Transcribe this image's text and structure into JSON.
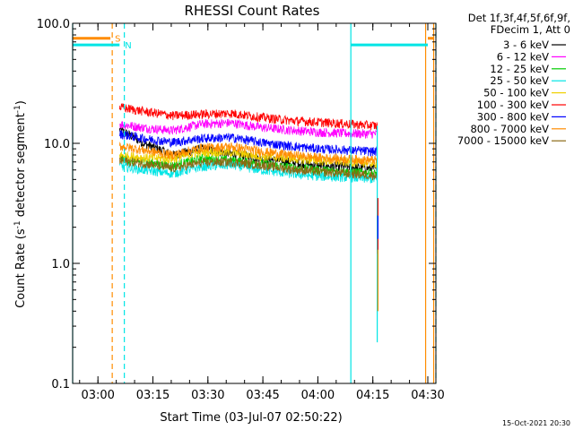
{
  "chart_data": {
    "type": "line",
    "title": "RHESSI Count Rates",
    "xlabel": "Start Time (03-Jul-07 02:50:22)",
    "ylabel_main": "Count Rate (s",
    "ylabel_sup1": "-1",
    "ylabel_mid": " detector segment",
    "ylabel_sup2": "-1",
    "ylabel_end": ")",
    "yscale": "log",
    "ylim": [
      0.1,
      100
    ],
    "xlim_minutes": [
      2.7,
      101.8
    ],
    "x_tick_labels": [
      "03:00",
      "03:15",
      "03:30",
      "03:45",
      "04:00",
      "04:15",
      "04:30"
    ],
    "x_tick_minutes": [
      9.6,
      24.6,
      39.6,
      54.6,
      69.6,
      84.6,
      99.6
    ],
    "y_tick_labels": [
      "100.0",
      "10.0",
      "1.0",
      "0.1"
    ],
    "y_tick_values": [
      100,
      10,
      1,
      0.1
    ],
    "legend_header": [
      "Det 1f,3f,4f,5f,6f,9f,",
      "FDecim 1, Att 0"
    ],
    "data_window_minutes": [
      15.5,
      85.8
    ],
    "series": [
      {
        "name": "3 - 6 keV",
        "color": "#000000",
        "x": [
          15.5,
          22,
          30,
          38,
          46,
          54,
          62,
          70,
          78,
          85.8
        ],
        "values": [
          13,
          10,
          8,
          9,
          8.2,
          7.5,
          7.0,
          6.5,
          6.4,
          6.1
        ]
      },
      {
        "name": "6 - 12 keV",
        "color": "#ff00ff",
        "x": [
          15.5,
          22,
          30,
          38,
          46,
          54,
          62,
          70,
          78,
          85.8
        ],
        "values": [
          14.5,
          13.5,
          12.8,
          14.5,
          14.8,
          13.6,
          12.9,
          12.4,
          12.1,
          12
        ]
      },
      {
        "name": "12 - 25 keV",
        "color": "#00cc00",
        "x": [
          15.5,
          22,
          30,
          38,
          46,
          54,
          62,
          70,
          78,
          85.8
        ],
        "values": [
          7.5,
          7.0,
          6.5,
          7.5,
          7.2,
          6.8,
          6.3,
          6.0,
          5.8,
          5.6
        ]
      },
      {
        "name": "25 - 50 keV",
        "color": "#00e5e5",
        "x": [
          15.5,
          22,
          30,
          38,
          46,
          54,
          62,
          70,
          78,
          85.8
        ],
        "values": [
          6.5,
          6.0,
          5.6,
          6.4,
          6.6,
          6.0,
          5.6,
          5.3,
          5.2,
          5.0
        ]
      },
      {
        "name": "50 - 100 keV",
        "color": "#f0d000",
        "x": [
          15.5,
          22,
          30,
          38,
          46,
          54,
          62,
          70,
          78,
          85.8
        ],
        "values": [
          8.0,
          7.6,
          7.4,
          8.5,
          8.4,
          7.8,
          7.5,
          7.2,
          7.0,
          6.8
        ]
      },
      {
        "name": "100 - 300 keV",
        "color": "#ff0000",
        "x": [
          15.5,
          22,
          30,
          38,
          46,
          54,
          62,
          70,
          78,
          85.8
        ],
        "values": [
          20,
          18.5,
          17,
          17.5,
          17.8,
          16.5,
          15.5,
          15.0,
          14.5,
          14.0
        ]
      },
      {
        "name": "300 - 800 keV",
        "color": "#0000ff",
        "x": [
          15.5,
          22,
          30,
          38,
          46,
          54,
          62,
          70,
          78,
          85.8
        ],
        "values": [
          12.0,
          11.0,
          10.2,
          11.0,
          11.2,
          10.2,
          9.5,
          9.0,
          8.8,
          8.5
        ]
      },
      {
        "name": "800 - 7000 keV",
        "color": "#ff8c00",
        "x": [
          15.5,
          22,
          30,
          38,
          46,
          54,
          62,
          70,
          78,
          85.8
        ],
        "values": [
          9.5,
          8.8,
          8.0,
          9.2,
          9.4,
          8.6,
          8.0,
          7.6,
          7.4,
          7.2
        ]
      },
      {
        "name": "7000 - 15000 keV",
        "color": "#8b6914",
        "x": [
          15.5,
          22,
          30,
          38,
          46,
          54,
          62,
          70,
          78,
          85.8
        ],
        "values": [
          7.2,
          6.8,
          6.2,
          6.9,
          7.0,
          6.6,
          6.1,
          5.8,
          5.6,
          5.4
        ]
      }
    ],
    "annotations": [
      {
        "label": "S",
        "color": "#ff8c00",
        "bar_x_minutes": [
          2.7,
          13.0
        ],
        "bar_y": 75,
        "dashed_line_minutes": 13.5,
        "bar2_x_minutes": [
          99.6,
          101.2
        ]
      },
      {
        "label": "N",
        "color": "#00e5e5",
        "bar_x_minutes": [
          2.7,
          15.5
        ],
        "bar_y": 66,
        "dashed_line_minutes": 16.8,
        "bar2_x_minutes": [
          78.6,
          99.6
        ]
      }
    ],
    "solid_lines": [
      {
        "color": "#00e5e5",
        "x_minutes": 2.7
      },
      {
        "color": "#00e5e5",
        "x_minutes": 78.6
      },
      {
        "color": "#ff8c00",
        "x_minutes": 99.0
      },
      {
        "color": "#ff8c00",
        "x_minutes": 101.2
      }
    ],
    "dashed_lines": [
      {
        "color": "#ff8c00",
        "x_minutes": 13.5
      },
      {
        "color": "#00e5e5",
        "x_minutes": 16.8
      },
      {
        "color": "#00e5e5",
        "x_minutes": 101.8
      }
    ],
    "dropoff_minutes": 85.8,
    "legend_position": "right"
  },
  "timestamp": "15-Oct-2021 20:30"
}
